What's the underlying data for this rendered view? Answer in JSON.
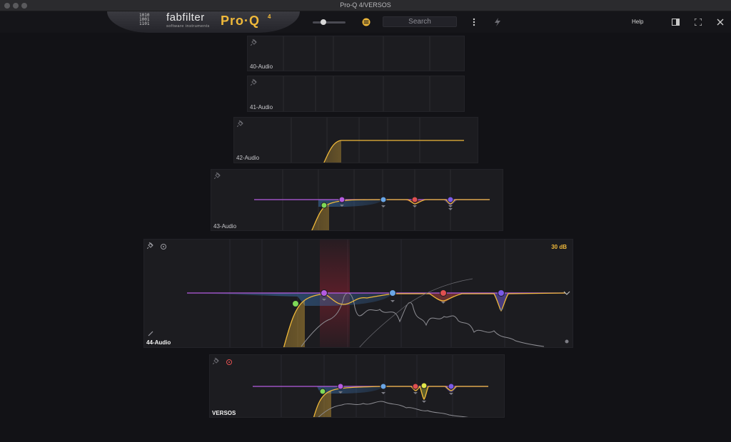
{
  "window": {
    "title": "Pro-Q 4/VERSOS"
  },
  "toolbar": {
    "brand_bits": "1010 1001 1101",
    "brand_name": "fabfilter",
    "brand_sub": "software instruments",
    "product": "Pro·Q",
    "product_version": "4",
    "search_placeholder": "Search",
    "help_label": "Help",
    "icons": [
      "slider-knob",
      "menu-circle-icon",
      "more-vertical-icon",
      "lightning-icon",
      "sidebar-icon",
      "fullscreen-icon",
      "close-icon"
    ]
  },
  "panels": [
    {
      "id": "p40",
      "label": "40-Audio"
    },
    {
      "id": "p41",
      "label": "41-Audio"
    },
    {
      "id": "p42",
      "label": "42-Audio"
    },
    {
      "id": "p43",
      "label": "43-Audio"
    },
    {
      "id": "p44",
      "label": "44-Audio",
      "range": "30 dB"
    },
    {
      "id": "pversos",
      "label": "VERSOS"
    }
  ],
  "colors": {
    "accent": "#f0b93a",
    "band_green": "#7ed957",
    "band_purple": "#b55be0",
    "band_blue": "#6aa6e6",
    "band_red": "#e05050",
    "band_violet": "#7a5ae8",
    "band_yellow": "#e2e84a"
  }
}
